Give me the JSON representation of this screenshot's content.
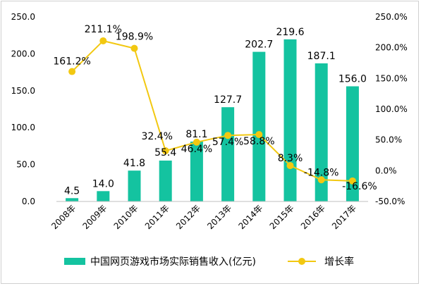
{
  "chart_data": {
    "type": "bar+line",
    "categories": [
      "2008年",
      "2009年",
      "2010年",
      "2011年",
      "2012年",
      "2013年",
      "2014年",
      "2015年",
      "2016年",
      "2017年"
    ],
    "series": [
      {
        "name": "中国网页游戏市场实际销售收入(亿元)",
        "type": "bar",
        "axis": "left",
        "values": [
          4.5,
          14.0,
          41.8,
          55.4,
          81.1,
          127.7,
          202.7,
          219.6,
          187.1,
          156.0
        ],
        "labels": [
          "4.5",
          "14.0",
          "41.8",
          "55.4",
          "81.1",
          "127.7",
          "202.7",
          "219.6",
          "187.1",
          "156.0"
        ],
        "color": "#14c3a0"
      },
      {
        "name": "增长率",
        "type": "line",
        "axis": "right",
        "values": [
          161.2,
          211.1,
          198.9,
          32.4,
          46.4,
          57.4,
          58.8,
          8.3,
          -14.8,
          -16.6
        ],
        "labels": [
          "161.2%",
          "211.1%",
          "198.9%",
          "32.4%",
          "46.4%",
          "57.4%",
          "58.8%",
          "8.3%",
          "-14.8%",
          "-16.6%"
        ],
        "color": "#f2c811"
      }
    ],
    "y_left": {
      "ylim": [
        0,
        250
      ],
      "ticks": [
        "0.0",
        "50.0",
        "100.0",
        "150.0",
        "200.0",
        "250.0"
      ]
    },
    "y_right": {
      "ylim": [
        -50,
        250
      ],
      "ticks": [
        "-50.0%",
        "0.0%",
        "50.0%",
        "100.0%",
        "150.0%",
        "200.0%",
        "250.0%"
      ]
    },
    "grid": false,
    "legend_position": "bottom"
  }
}
